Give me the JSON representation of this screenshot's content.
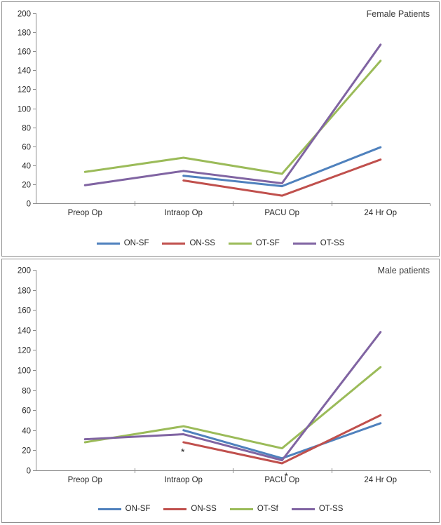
{
  "page": {
    "background": "#ffffff",
    "panel_border_color": "#8f8f8f"
  },
  "chart_data": [
    {
      "type": "line",
      "title": "Female Patients",
      "title_position": "top-right",
      "legend_position": "bottom",
      "grid": false,
      "categories": [
        "Preop Op",
        "Intraop Op",
        "PACU Op",
        "24 Hr Op"
      ],
      "y_axis": {
        "min": 0,
        "max": 200,
        "step": 20,
        "ticks": [
          0,
          20,
          40,
          60,
          80,
          100,
          120,
          140,
          160,
          180,
          200
        ]
      },
      "series": [
        {
          "name": "ON-SF",
          "color": "#4F81BD",
          "values": [
            null,
            29,
            18,
            59
          ]
        },
        {
          "name": "ON-SS",
          "color": "#C0504D",
          "values": [
            null,
            24,
            8,
            46
          ]
        },
        {
          "name": "OT-SF",
          "color": "#9BBB59",
          "values": [
            33,
            48,
            31,
            150
          ]
        },
        {
          "name": "OT-SS",
          "color": "#8064A2",
          "values": [
            19,
            34,
            21,
            167
          ]
        }
      ],
      "annotations": []
    },
    {
      "type": "line",
      "title": "Male patients",
      "title_position": "top-right",
      "legend_position": "bottom",
      "grid": false,
      "categories": [
        "Preop Op",
        "Intraop Op",
        "PACU Op",
        "24 Hr Op"
      ],
      "y_axis": {
        "min": 0,
        "max": 200,
        "step": 20,
        "ticks": [
          0,
          20,
          40,
          60,
          80,
          100,
          120,
          140,
          160,
          180,
          200
        ]
      },
      "series": [
        {
          "name": "ON-SF",
          "color": "#4F81BD",
          "values": [
            null,
            40,
            12,
            47
          ]
        },
        {
          "name": "ON-SS",
          "color": "#C0504D",
          "values": [
            null,
            28,
            7,
            55
          ]
        },
        {
          "name": "OT-Sf",
          "color": "#9BBB59",
          "values": [
            28,
            44,
            22,
            103
          ]
        },
        {
          "name": "OT-SS",
          "color": "#8064A2",
          "values": [
            31,
            36,
            10,
            138
          ]
        }
      ],
      "annotations": [
        {
          "text": "*",
          "category_index": 1,
          "value": 15,
          "dx": -1
        },
        {
          "text": "*",
          "category_index": 2,
          "value": -9,
          "dx": 6
        }
      ]
    }
  ]
}
